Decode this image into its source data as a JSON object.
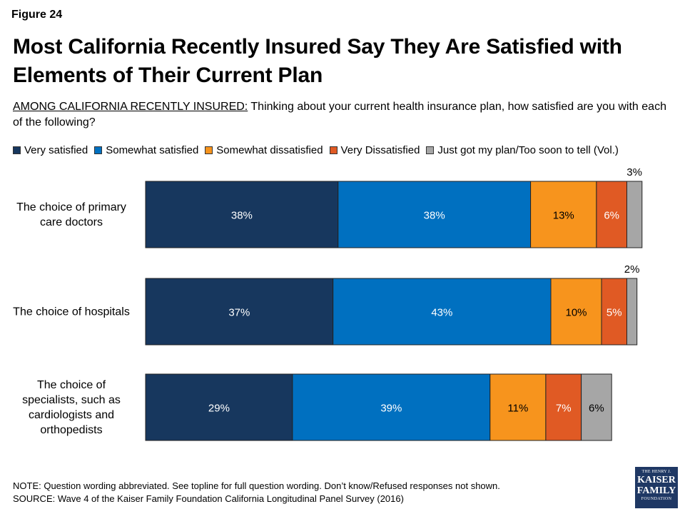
{
  "figure_label": "Figure 24",
  "title": "Most California Recently Insured Say They Are Satisfied with Elements of Their Current Plan",
  "question_lead": "AMONG CALIFORNIA RECENTLY INSURED:",
  "question_text": " Thinking about your current health insurance plan, how satisfied are you with each of the following?",
  "note_line1": "NOTE: Question wording abbreviated. See topline for full question wording. Don’t know/Refused responses not shown.",
  "note_line2": "SOURCE: Wave 4 of the Kaiser Family Foundation California Longitudinal Panel Survey (2016)",
  "logo": {
    "line1": "THE HENRY J.",
    "line2": "KAISER",
    "line3": "FAMILY",
    "line4": "FOUNDATION"
  },
  "chart_data": {
    "type": "bar",
    "orientation": "horizontal",
    "stacked": true,
    "categories": [
      "The choice of primary care doctors",
      "The choice of hospitals",
      "The choice of specialists, such as cardiologists and orthopedists"
    ],
    "category_lines": [
      [
        "The choice of primary",
        "care doctors"
      ],
      [
        "The choice of hospitals"
      ],
      [
        "The choice of",
        "specialists, such as",
        "cardiologists and",
        "orthopedists"
      ]
    ],
    "series": [
      {
        "name": "Very satisfied",
        "color": "#17375e",
        "label_color": "#ffffff",
        "values": [
          38,
          37,
          29
        ]
      },
      {
        "name": "Somewhat satisfied",
        "color": "#0070c0",
        "label_color": "#ffffff",
        "values": [
          38,
          43,
          39
        ]
      },
      {
        "name": "Somewhat dissatisfied",
        "color": "#f7941d",
        "label_color": "#000000",
        "values": [
          13,
          10,
          11
        ]
      },
      {
        "name": "Very Dissatisfied",
        "color": "#e05a24",
        "label_color": "#ffffff",
        "values": [
          6,
          5,
          7
        ]
      },
      {
        "name": "Just got my plan/Too soon to tell (Vol.)",
        "color": "#a6a6a6",
        "label_color": "#000000",
        "values": [
          3,
          2,
          6
        ]
      }
    ],
    "value_suffix": "%",
    "xlim": [
      0,
      100
    ],
    "grid": false,
    "legend_position": "top"
  }
}
